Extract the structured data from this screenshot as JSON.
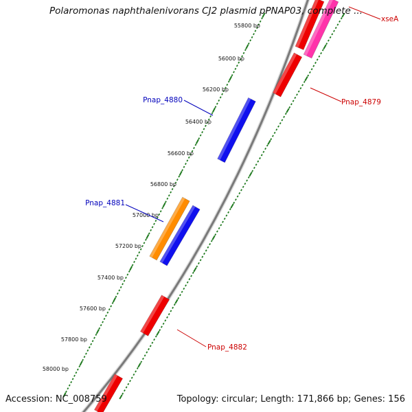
{
  "title": "Polaromonas naphthalenivorans CJ2 plasmid pPNAP03, complete ...",
  "footer": {
    "accession": "Accession: NC_008759",
    "summary": "Topology: circular; Length: 171,866 bp; Genes: 156"
  },
  "colors": {
    "backbone": "#8a8a8a",
    "ticks": "#1f7a1f",
    "gene_red": "#ee0000",
    "gene_blue": "#1010ee",
    "gene_orange": "#ff8c00",
    "gene_pink": "#ff33aa",
    "label_red": "#cc0000",
    "label_blue": "#0000bb"
  },
  "ruler_labels": [
    "55800 bp",
    "56000 bp",
    "56200 bp",
    "56400 bp",
    "56600 bp",
    "56800 bp",
    "57000 bp",
    "57200 bp",
    "57400 bp",
    "57600 bp",
    "57800 bp",
    "58000 bp"
  ],
  "gene_labels": {
    "xseA": "xseA",
    "pnap4879": "Pnap_4879",
    "pnap4880": "Pnap_4880",
    "pnap4881": "Pnap_4881",
    "pnap4882": "Pnap_4882"
  }
}
